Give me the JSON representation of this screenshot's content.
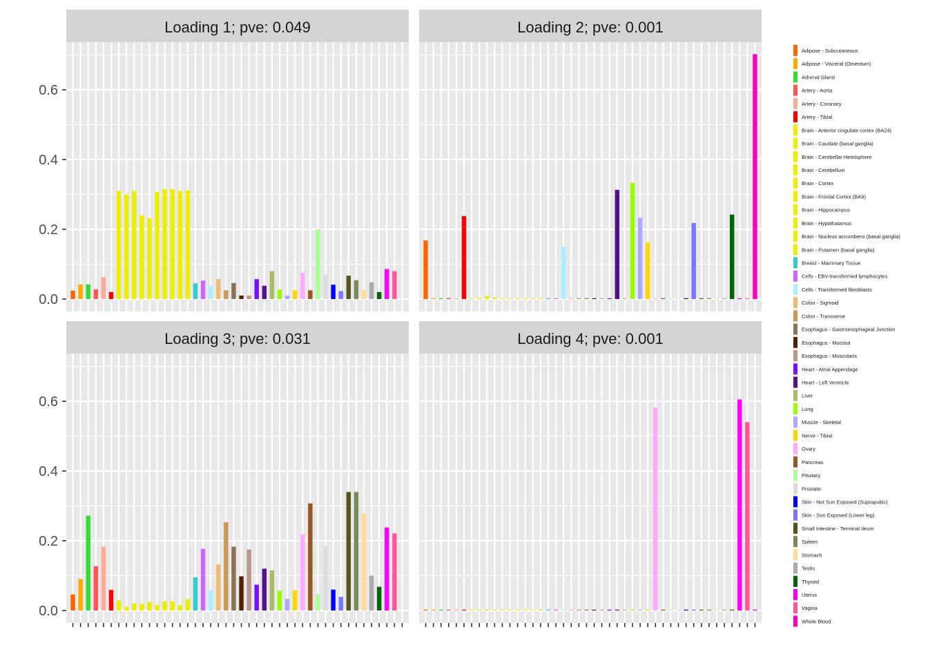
{
  "chart_data": {
    "type": "bar",
    "y_ticks": [
      0.0,
      0.2,
      0.4,
      0.6
    ],
    "y_tick_labels": [
      "0.0",
      "0.2",
      "0.4",
      "0.6"
    ],
    "ylim": [
      0,
      0.74
    ],
    "grid": true,
    "legend_position": "right",
    "categories": [
      "Adipose - Subcutaneous",
      "Adipose - Visceral (Omentum)",
      "Adrenal Gland",
      "Artery - Aorta",
      "Artery - Coronary",
      "Artery - Tibial",
      "Brain - Anterior cingulate cortex (BA24)",
      "Brain - Caudate (basal ganglia)",
      "Brain - Cerebellar Hemisphere",
      "Brain - Cerebellum",
      "Brain - Cortex",
      "Brain - Frontal Cortex (BA9)",
      "Brain - Hippocampus",
      "Brain - Hypothalamus",
      "Brain - Nucleus accumbens (basal ganglia)",
      "Brain - Putamen (basal ganglia)",
      "Breast - Mammary Tissue",
      "Cells - EBV-transformed lymphocytes",
      "Cells - Transformed fibroblasts",
      "Colon - Sigmoid",
      "Colon - Transverse",
      "Esophagus - Gastroesophageal Junction",
      "Esophagus - Mucosa",
      "Esophagus - Muscularis",
      "Heart - Atrial Appendage",
      "Heart - Left Ventricle",
      "Liver",
      "Lung",
      "Muscle - Skeletal",
      "Nerve - Tibial",
      "Ovary",
      "Pancreas",
      "Pituitary",
      "Prostate",
      "Skin - Not Sun Exposed (Suprapubic)",
      "Skin - Sun Exposed (Lower leg)",
      "Small Intestine - Terminal Ileum",
      "Spleen",
      "Stomach",
      "Testis",
      "Thyroid",
      "Uterus",
      "Vagina",
      "Whole Blood"
    ],
    "colors": [
      "#FF6600",
      "#FFAA00",
      "#33DD33",
      "#FF5555",
      "#FFAA99",
      "#FF0000",
      "#EEEE00",
      "#EEEE00",
      "#EEEE00",
      "#EEEE00",
      "#EEEE00",
      "#EEEE00",
      "#EEEE00",
      "#EEEE00",
      "#EEEE00",
      "#EEEE00",
      "#33CCCC",
      "#CC66FF",
      "#AAEEFF",
      "#EEBB77",
      "#CC9955",
      "#8B7355",
      "#552200",
      "#BB9988",
      "#7711FF",
      "#551188",
      "#AABB66",
      "#99FF00",
      "#AAAAFF",
      "#FFD700",
      "#FFAAFF",
      "#995522",
      "#AAFF99",
      "#DDDDDD",
      "#0000FF",
      "#7777FF",
      "#555522",
      "#7A8B5B",
      "#FFDD99",
      "#AAAAAA",
      "#006600",
      "#FF00FF",
      "#FF5599",
      "#FF00BB"
    ],
    "panels": [
      {
        "title": "Loading 1; pve: 0.049",
        "values": [
          0.024,
          0.042,
          0.042,
          0.028,
          0.063,
          0.02,
          0.31,
          0.3,
          0.31,
          0.24,
          0.232,
          0.307,
          0.315,
          0.315,
          0.31,
          0.312,
          0.045,
          0.053,
          0.037,
          0.057,
          0.025,
          0.046,
          0.01,
          0.01,
          0.057,
          0.038,
          0.08,
          0.027,
          0.01,
          0.025,
          0.075,
          0.025,
          0.2,
          0.07,
          0.041,
          0.023,
          0.067,
          0.054,
          0.025,
          0.048,
          0.02,
          0.086,
          0.08,
          0.0
        ]
      },
      {
        "title": "Loading 2; pve: 0.001",
        "values": [
          0.168,
          0.001,
          0.001,
          0.003,
          0.001,
          0.238,
          0.002,
          0.003,
          0.008,
          0.004,
          0.002,
          0.002,
          0.002,
          0.002,
          0.002,
          0.002,
          0.002,
          0.002,
          0.15,
          0.002,
          0.002,
          0.002,
          0.002,
          0.002,
          0.002,
          0.313,
          0.002,
          0.333,
          0.233,
          0.162,
          0.002,
          0.002,
          0.002,
          0.002,
          0.002,
          0.218,
          0.002,
          0.002,
          0.002,
          0.002,
          0.242,
          0.002,
          0.002,
          0.702
        ]
      },
      {
        "title": "Loading 3; pve: 0.031",
        "values": [
          0.046,
          0.09,
          0.272,
          0.127,
          0.183,
          0.059,
          0.029,
          0.01,
          0.02,
          0.019,
          0.024,
          0.016,
          0.026,
          0.026,
          0.015,
          0.033,
          0.095,
          0.177,
          0.058,
          0.132,
          0.253,
          0.183,
          0.098,
          0.175,
          0.074,
          0.12,
          0.115,
          0.057,
          0.033,
          0.058,
          0.218,
          0.307,
          0.047,
          0.185,
          0.06,
          0.039,
          0.34,
          0.34,
          0.278,
          0.1,
          0.068,
          0.238,
          0.221,
          0.0
        ]
      },
      {
        "title": "Loading 4; pve: 0.001",
        "values": [
          0.002,
          0.002,
          0.002,
          0.002,
          0.002,
          0.002,
          0.002,
          0.002,
          0.002,
          0.002,
          0.002,
          0.002,
          0.002,
          0.002,
          0.002,
          0.002,
          0.002,
          0.002,
          0.002,
          0.002,
          0.002,
          0.002,
          0.002,
          0.002,
          0.002,
          0.002,
          0.002,
          0.002,
          0.002,
          0.002,
          0.582,
          0.002,
          0.002,
          0.002,
          0.002,
          0.002,
          0.002,
          0.002,
          0.002,
          0.002,
          0.002,
          0.605,
          0.54,
          0.002
        ]
      }
    ]
  }
}
